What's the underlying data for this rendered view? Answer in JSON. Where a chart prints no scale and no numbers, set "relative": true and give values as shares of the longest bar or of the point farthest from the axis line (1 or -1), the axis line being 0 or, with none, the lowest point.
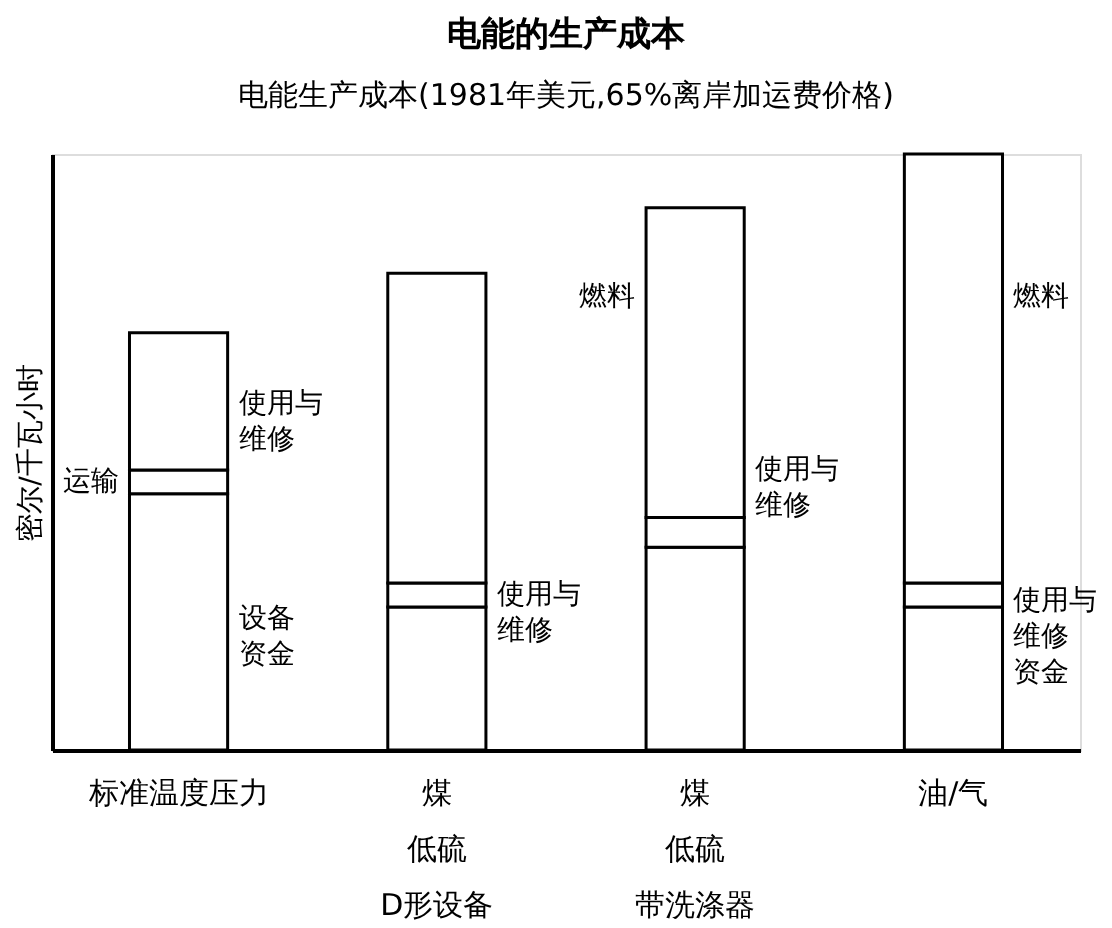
{
  "chart_data": {
    "type": "bar",
    "stacked": true,
    "relative": true,
    "title": "电能的生产成本",
    "subtitle": "电能生产成本(1981年美元,65%离岸加运费价格)",
    "ylabel": "密尔/千瓦小时",
    "categories": [
      "标准温度压力",
      "煤低硫D形设备",
      "煤低硫带洗涤器",
      "油/气"
    ],
    "series": [
      {
        "color": "#ffffff",
        "values": [
          0.43,
          0.24,
          0.34,
          0.24
        ]
      },
      {
        "color": "#ffffff",
        "values": [
          0.04,
          0.04,
          0.05,
          0.04
        ]
      },
      {
        "color": "#ffffff",
        "values": [
          0.23,
          0.52,
          0.52,
          0.72
        ]
      }
    ],
    "annotations": [
      "运输",
      "使用与维修",
      "设备资金",
      "使用与维修",
      "燃料",
      "使用与维修",
      "燃料",
      "使用与维修资金"
    ],
    "grid": false
  }
}
